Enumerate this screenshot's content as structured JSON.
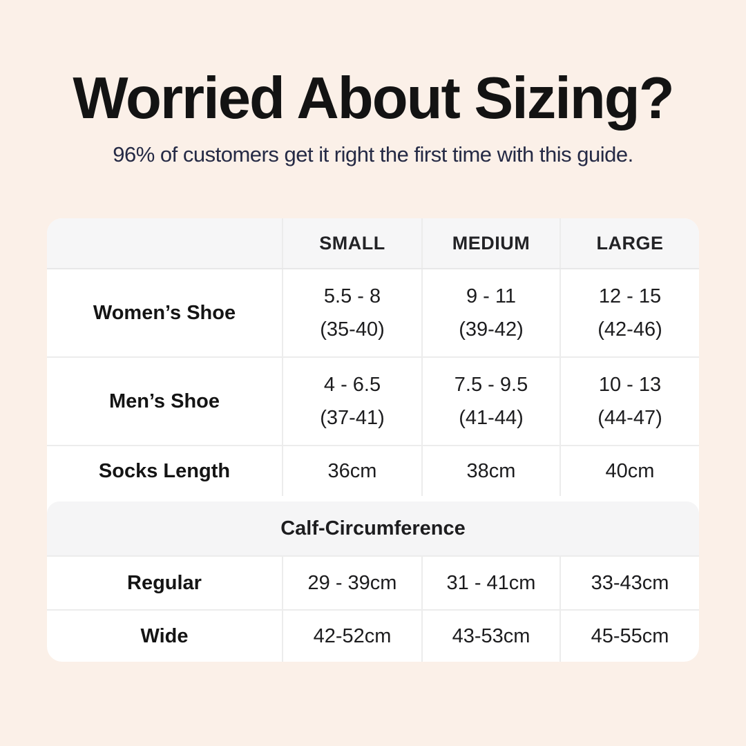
{
  "header": {
    "title": "Worried About Sizing?",
    "subtitle": "96% of customers get it right the first time with this guide."
  },
  "table": {
    "headers": {
      "label": "",
      "small": "SMALL",
      "medium": "MEDIUM",
      "large": "LARGE"
    },
    "rows": [
      {
        "label": "Women’s Shoe",
        "small_line1": "5.5 - 8",
        "small_line2": "(35-40)",
        "medium_line1": "9 - 11",
        "medium_line2": "(39-42)",
        "large_line1": "12 - 15",
        "large_line2": "(42-46)"
      },
      {
        "label": "Men’s Shoe",
        "small_line1": "4 - 6.5",
        "small_line2": "(37-41)",
        "medium_line1": "7.5 - 9.5",
        "medium_line2": "(41-44)",
        "large_line1": "10 - 13",
        "large_line2": "(44-47)"
      },
      {
        "label": "Socks Length",
        "small_line1": "36cm",
        "medium_line1": "38cm",
        "large_line1": "40cm"
      }
    ],
    "section_header": "Calf-Circumference",
    "calf_rows": [
      {
        "label": "Regular",
        "small_line1": "29 - 39cm",
        "medium_line1": "31 - 41cm",
        "large_line1": "33-43cm"
      },
      {
        "label": "Wide",
        "small_line1": "42-52cm",
        "medium_line1": "43-53cm",
        "large_line1": "45-55cm"
      }
    ]
  },
  "colors": {
    "page_background": "#fbf0e8",
    "card_background": "#ffffff",
    "header_band_gray": "#f6f6f7",
    "divider": "#ececec",
    "title_text": "#131313",
    "subtitle_navy": "#252a45",
    "body_text": "#1c1c1e"
  },
  "chart_data": {
    "type": "table",
    "title": "Worried About Sizing?",
    "subtitle": "96% of customers get it right the first time with this guide.",
    "columns": [
      "",
      "SMALL",
      "MEDIUM",
      "LARGE"
    ],
    "rows": [
      [
        "Women’s Shoe",
        "5.5 - 8 (35-40)",
        "9 - 11 (39-42)",
        "12 - 15 (42-46)"
      ],
      [
        "Men’s Shoe",
        "4 - 6.5 (37-41)",
        "7.5 - 9.5 (41-44)",
        "10 - 13 (44-47)"
      ],
      [
        "Socks Length",
        "36cm",
        "38cm",
        "40cm"
      ],
      [
        "Calf-Circumference (section header)",
        "",
        "",
        ""
      ],
      [
        "Regular",
        "29 - 39cm",
        "31 - 41cm",
        "33-43cm"
      ],
      [
        "Wide",
        "42-52cm",
        "43-53cm",
        "45-55cm"
      ]
    ],
    "layout": {
      "grid": "off",
      "legend": "none",
      "header_row_shaded": true,
      "section_band_shaded": true
    }
  }
}
